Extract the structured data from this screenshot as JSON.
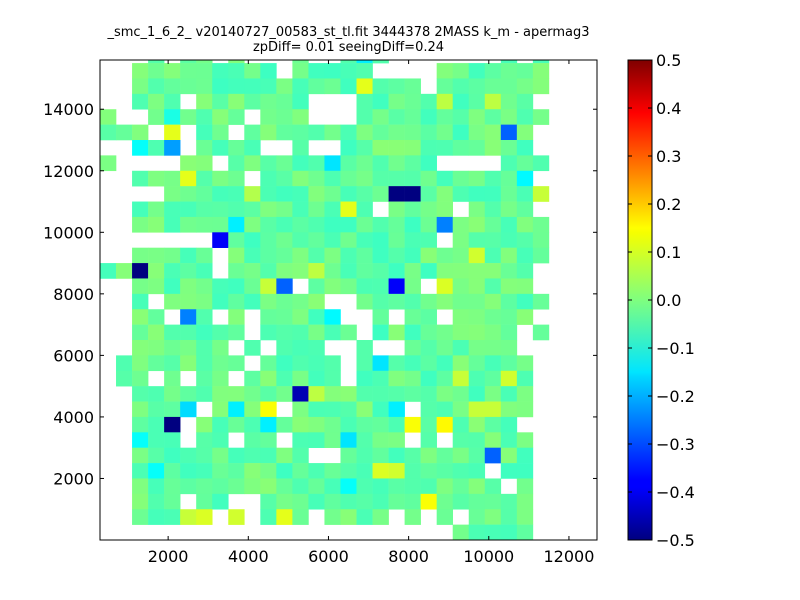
{
  "chart_data": {
    "type": "heatmap",
    "title": "_smc_1_6_2_ v20140727_00583_st_tl.fit 3444378 2MASS k_m - apermag3",
    "subtitle": "zpDiff= 0.01 seeingDiff=0.24",
    "xlabel": "",
    "ylabel": "",
    "xlim": [
      300,
      12700
    ],
    "ylim": [
      0,
      15600
    ],
    "xticks": [
      "2000",
      "4000",
      "6000",
      "8000",
      "10000",
      "12000"
    ],
    "yticks": [
      "2000",
      "4000",
      "6000",
      "8000",
      "10000",
      "12000",
      "14000"
    ],
    "colormap": "jet",
    "clim": [
      -0.5,
      0.5
    ],
    "colorbar_ticks": [
      "0.5",
      "0.4",
      "0.3",
      "0.2",
      "0.1",
      "0.0",
      "−0.1",
      "−0.2",
      "−0.3",
      "−0.4",
      "−0.5"
    ],
    "grid": false,
    "cell_size": [
      400,
      500
    ],
    "x_origin": 300,
    "y_origin": 0,
    "rows": [
      ".....:..:..:.....-...........",
      "...:.::.:...:..:::.......:.:.",
      "..:::::::::.:::::....:::::::.",
      "..::::::::::::::::::.:::::::.",
      "..:::.:::::::...:::::::::::..",
      ":..::::::.:::...::::::::::::.",
      ":::.:.::.::::::::::::::::::..",
      "..-::.::::..:..::::::::::::..",
      ":....::.:::::::::::::....:::.",
      "..:::::::.:::::::::::::::::..",
      "....::::::::::::::::::::::::.",
      "..:::::::::::::::.::::.::::..",
      "..::::::::::::::::::::::::::.",
      ".......::::::::::::::.::::::.",
      "..:::::.::::::::::::::::::::.",
      ":::::::.:::::::::::::::::::..",
      "..::::::::::.:::::::.::::::..",
      "..:.::::::::::..::::::::::::.",
      "..::.::.:.:::::..:.::.:::::..",
      "..:::::::.::::::.:::::::::.:.",
      "..::::::.:.:::..:..:::::::...",
      ".::::::::.:::::.:::::::::::..",
      ".::.:.::.::::::.:::::::::::..",
      "..:::::::::::::::::::::::::..",
      "..::::.::::.:::::::.:::::::..",
      "..:::.::::::::::::::::::::...",
      "..:::.::.::.:::::::.:.:::::..",
      "..:::::::::::..::::::::::::..",
      "..::::::::::::::::::::::.::..",
      "..:::::::::::::::::::::::.:..",
      "..:::.::..:::::::::::::::::..",
      "..:::::.:.:::.::::.:.:.::::..",
      "......................:::::.."
    ],
    "outliers": [
      [
        1200,
        8500,
        -0.5
      ],
      [
        1900,
        9500,
        -0.5
      ],
      [
        1900,
        3500,
        -0.5
      ],
      [
        3400,
        9500,
        -0.38
      ],
      [
        5100,
        4500,
        -0.45
      ],
      [
        5300,
        8000,
        -0.45
      ],
      [
        7800,
        11000,
        -0.5
      ],
      [
        8200,
        11000,
        -0.5
      ],
      [
        7800,
        8000,
        -0.38
      ],
      [
        4900,
        8000,
        -0.28
      ],
      [
        5900,
        6000,
        -0.25
      ],
      [
        4900,
        4000,
        -0.25
      ],
      [
        9600,
        15500,
        -0.28
      ],
      [
        10500,
        13000,
        -0.28
      ],
      [
        9400,
        500,
        -0.25
      ],
      [
        10200,
        2500,
        -0.28
      ],
      [
        8800,
        10000,
        -0.25
      ],
      [
        1900,
        12500,
        -0.22
      ],
      [
        2300,
        7000,
        -0.25
      ],
      [
        9400,
        12000,
        -0.18
      ],
      [
        6200,
        12000,
        -0.15
      ],
      [
        3600,
        10000,
        -0.14
      ],
      [
        6300,
        3000,
        -0.15
      ],
      [
        7200,
        5500,
        -0.15
      ],
      [
        7600,
        4000,
        -0.14
      ],
      [
        2400,
        4000,
        -0.16
      ],
      [
        3600,
        4000,
        -0.14
      ],
      [
        4300,
        3500,
        -0.14
      ],
      [
        7000,
        15500,
        -0.14
      ],
      [
        6200,
        7000,
        -0.13
      ],
      [
        3400,
        500,
        -0.12
      ],
      [
        6600,
        1500,
        -0.12
      ],
      [
        1300,
        3000,
        -0.12
      ],
      [
        4300,
        12500,
        -0.12
      ],
      [
        10800,
        11500,
        -0.13
      ],
      [
        1700,
        2000,
        -0.12
      ],
      [
        2100,
        13500,
        -0.1
      ],
      [
        2500,
        11500,
        0.1
      ],
      [
        1900,
        13000,
        0.1
      ],
      [
        6500,
        10500,
        0.1
      ],
      [
        6700,
        14500,
        0.1
      ],
      [
        9200,
        5000,
        0.07
      ],
      [
        9600,
        9000,
        0.08
      ],
      [
        8700,
        8000,
        0.09
      ],
      [
        10600,
        5000,
        0.08
      ],
      [
        4400,
        4000,
        0.12
      ],
      [
        8100,
        3500,
        0.12
      ],
      [
        8700,
        3500,
        0.13
      ],
      [
        7200,
        2000,
        0.09
      ],
      [
        7600,
        2000,
        0.08
      ],
      [
        8300,
        1000,
        0.12
      ],
      [
        9800,
        4000,
        0.07
      ],
      [
        10100,
        4000,
        0.07
      ],
      [
        11300,
        1000,
        0.12
      ],
      [
        11100,
        5000,
        0.06
      ],
      [
        4400,
        12500,
        0.08
      ],
      [
        3000,
        500,
        0.09
      ],
      [
        2600,
        500,
        0.07
      ],
      [
        4700,
        500,
        0.1
      ],
      [
        3800,
        500,
        0.08
      ],
      [
        5600,
        8500,
        0.06
      ],
      [
        4500,
        8000,
        0.07
      ],
      [
        5700,
        4500,
        0.06
      ],
      [
        8900,
        14000,
        0.06
      ],
      [
        10100,
        14000,
        0.06
      ],
      [
        11400,
        11000,
        0.07
      ],
      [
        11200,
        8500,
        0.05
      ],
      [
        12000,
        5000,
        0.04
      ],
      [
        12300,
        1500,
        0.05
      ],
      [
        11700,
        9000,
        0.04
      ],
      [
        1500,
        11000,
        0.05
      ],
      [
        3900,
        11000,
        0.05
      ]
    ]
  }
}
